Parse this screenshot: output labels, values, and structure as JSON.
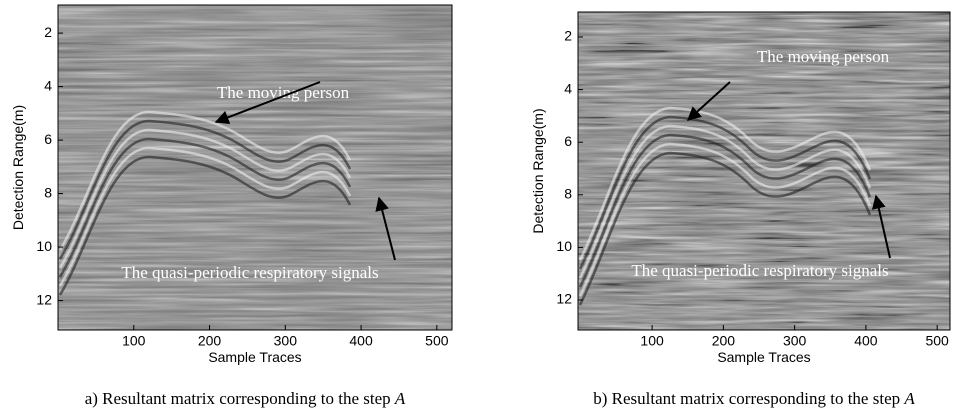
{
  "panels": [
    {
      "xlabel": "Sample Traces",
      "ylabel": "Detection Range(m)",
      "xlim": [
        0,
        520
      ],
      "ylim": [
        0.95,
        13.1
      ],
      "xticks": [
        100,
        200,
        300,
        400,
        500
      ],
      "yticks": [
        2,
        4,
        6,
        8,
        10,
        12
      ],
      "annotations": [
        "The moving person",
        "The quasi-periodic respiratory signals"
      ],
      "caption_text": "a) Resultant matrix corresponding to the step ",
      "caption_step": "A"
    },
    {
      "xlabel": "Sample Traces",
      "ylabel": "Detection Range(m)",
      "xlim": [
        -4,
        518
      ],
      "ylim": [
        1.05,
        13.14
      ],
      "xticks": [
        100,
        200,
        300,
        400,
        500
      ],
      "yticks": [
        2,
        4,
        6,
        8,
        10,
        12
      ],
      "annotations": [
        "The moving person",
        "The quasi-periodic respiratory signals"
      ],
      "caption_text": "b) Resultant matrix corresponding to the step ",
      "caption_step": "A"
    }
  ]
}
